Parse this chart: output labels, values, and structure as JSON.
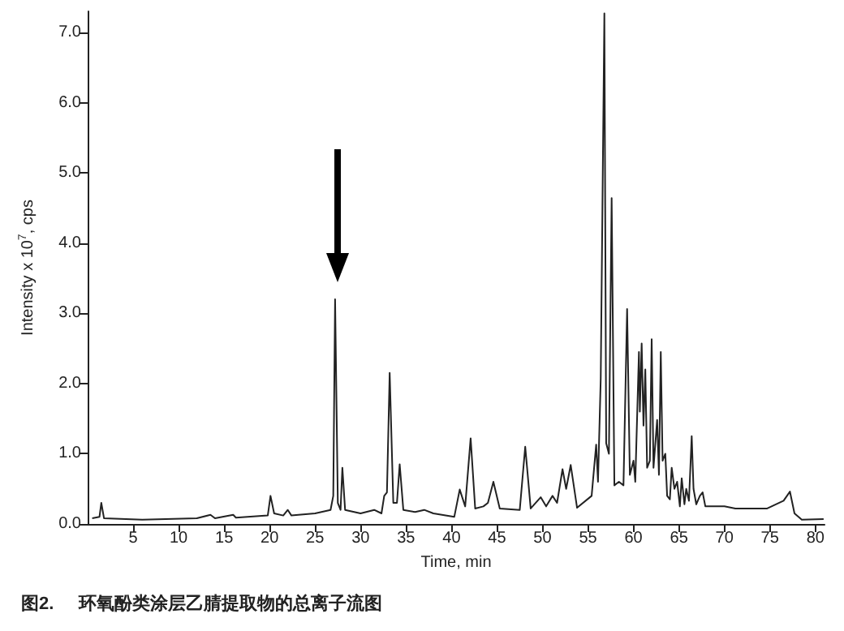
{
  "chart_data": {
    "type": "line",
    "title": "图2.     环氧酚类涂层乙腈提取物的总离子流图",
    "xlabel": "Time, min",
    "ylabel": "Intensity x 10$^{7}$, cps",
    "xlim": [
      0,
      81
    ],
    "xticks": [
      5,
      10,
      15,
      20,
      25,
      30,
      35,
      40,
      45,
      50,
      55,
      60,
      65,
      70,
      75,
      80
    ],
    "ylim": [
      0,
      7.3
    ],
    "yticks": [
      {
        "value": 0,
        "label": "0.0"
      },
      {
        "value": 1,
        "label": "1.0"
      },
      {
        "value": 2,
        "label": "2.0"
      },
      {
        "value": 3,
        "label": "3.0"
      },
      {
        "value": 4,
        "label": "4.0"
      },
      {
        "value": 5,
        "label": "5.0"
      },
      {
        "value": 6,
        "label": "6.0"
      },
      {
        "value": 7,
        "label": "7.0"
      }
    ],
    "marker": "none",
    "line_style": "solid",
    "series": [
      {
        "color": "#222222",
        "x": [
          0.5,
          1.3,
          1.5,
          1.8,
          6,
          12,
          13.5,
          14,
          16,
          16.3,
          19.8,
          20.1,
          20.5,
          21.5,
          22,
          22.4,
          25,
          26.7,
          27,
          27.2,
          27.5,
          27.8,
          28,
          28.3,
          30,
          31.5,
          32.3,
          32.6,
          32.9,
          33.2,
          33.6,
          34,
          34.3,
          34.7,
          36,
          37,
          38,
          40.3,
          40.9,
          41.5,
          42.1,
          42.6,
          43.5,
          44,
          44.6,
          45.3,
          47.5,
          48.1,
          48.7,
          49.8,
          50.4,
          51.1,
          51.6,
          52.2,
          52.6,
          53.1,
          53.8,
          55.4,
          55.9,
          56.1,
          56.4,
          56.8,
          57,
          57.3,
          57.6,
          57.9,
          58.4,
          58.9,
          59.3,
          59.6,
          60,
          60.2,
          60.6,
          60.7,
          60.9,
          61.1,
          61.3,
          61.5,
          61.8,
          62,
          62.2,
          62.6,
          62.8,
          63,
          63.2,
          63.5,
          63.7,
          64,
          64.2,
          64.5,
          64.8,
          65.1,
          65.3,
          65.6,
          65.8,
          66.1,
          66.4,
          66.6,
          66.9,
          67.3,
          67.6,
          67.9,
          68.8,
          70,
          71.2,
          74.7,
          76.5,
          77.2,
          77.7,
          78.5,
          80.9
        ],
        "values": [
          0.08,
          0.1,
          0.3,
          0.08,
          0.06,
          0.08,
          0.13,
          0.08,
          0.13,
          0.09,
          0.12,
          0.4,
          0.15,
          0.12,
          0.2,
          0.12,
          0.15,
          0.2,
          0.4,
          3.2,
          0.3,
          0.2,
          0.8,
          0.2,
          0.15,
          0.2,
          0.15,
          0.4,
          0.45,
          2.15,
          0.3,
          0.3,
          0.85,
          0.2,
          0.17,
          0.2,
          0.15,
          0.1,
          0.49,
          0.25,
          1.22,
          0.22,
          0.25,
          0.3,
          0.6,
          0.22,
          0.2,
          1.1,
          0.22,
          0.38,
          0.25,
          0.4,
          0.3,
          0.78,
          0.5,
          0.84,
          0.23,
          0.4,
          1.13,
          0.6,
          2.07,
          7.27,
          1.15,
          1.0,
          4.64,
          0.55,
          0.6,
          0.55,
          3.06,
          0.7,
          0.9,
          0.6,
          2.45,
          1.6,
          2.57,
          1.4,
          2.2,
          0.8,
          0.9,
          2.63,
          0.8,
          1.48,
          0.7,
          2.45,
          0.9,
          1.0,
          0.4,
          0.35,
          0.8,
          0.5,
          0.6,
          0.25,
          0.65,
          0.28,
          0.5,
          0.33,
          1.25,
          0.5,
          0.28,
          0.4,
          0.45,
          0.25,
          0.25,
          0.25,
          0.22,
          0.22,
          0.33,
          0.46,
          0.15,
          0.06,
          0.07
        ]
      }
    ]
  }
}
